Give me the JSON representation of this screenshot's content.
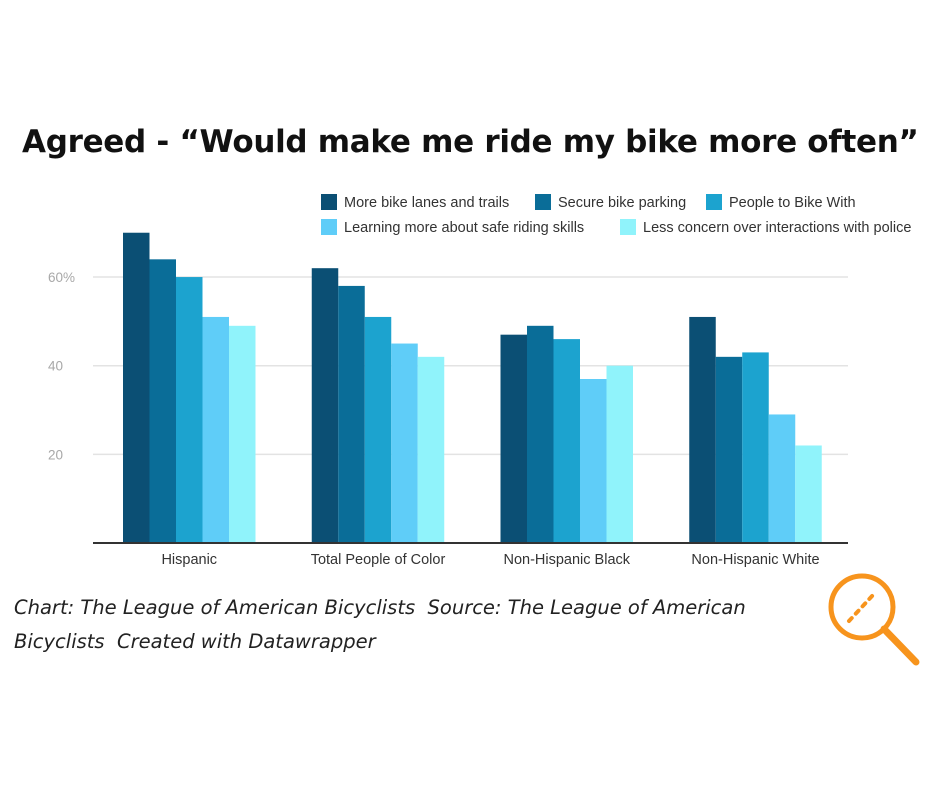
{
  "chart_data": {
    "type": "bar",
    "title": "Agreed - “Would make me ride my bike more often”",
    "categories": [
      "Hispanic",
      "Total People of Color",
      "Non-Hispanic Black",
      "Non-Hispanic White"
    ],
    "series": [
      {
        "name": "More bike lanes and trails",
        "color": "#0b4f74",
        "values": [
          70,
          62,
          47,
          51
        ]
      },
      {
        "name": "Secure bike parking",
        "color": "#0a6d98",
        "values": [
          64,
          58,
          49,
          42
        ]
      },
      {
        "name": "People to Bike With",
        "color": "#1ca3cf",
        "values": [
          60,
          51,
          46,
          43
        ]
      },
      {
        "name": "Learning more about safe riding skills",
        "color": "#5fcdf8",
        "values": [
          51,
          45,
          37,
          29
        ]
      },
      {
        "name": "Less concern over interactions with police",
        "color": "#90f3fb",
        "values": [
          49,
          42,
          40,
          22
        ]
      }
    ],
    "yticks": [
      {
        "value": 20,
        "label": "20"
      },
      {
        "value": 40,
        "label": "40"
      },
      {
        "value": 60,
        "label": "60%"
      }
    ],
    "ylim": [
      0,
      74
    ],
    "grid": true,
    "legend": "top-right"
  },
  "footer": {
    "line1": "Chart: The League of American Bicyclists  Source: The League of American",
    "line2": "Bicyclists  Created with Datawrapper"
  },
  "icon": {
    "name": "magnifier-icon",
    "color": "#f7941d"
  }
}
